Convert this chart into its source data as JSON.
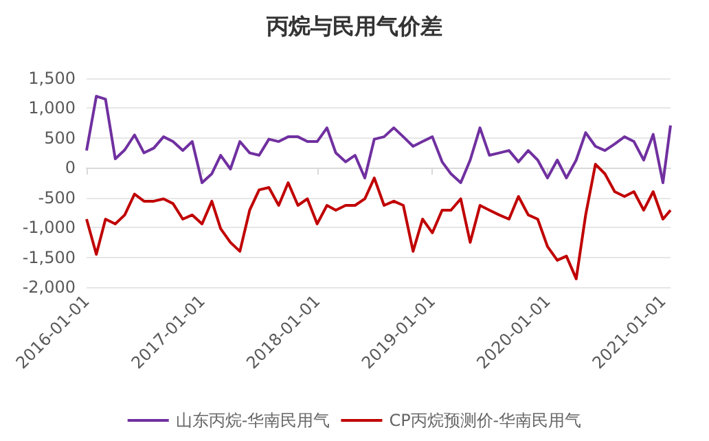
{
  "chart_data": {
    "type": "line",
    "title": "丙烷与民用气价差",
    "x": [
      "2016-01",
      "2016-02",
      "2016-03",
      "2016-04",
      "2016-05",
      "2016-06",
      "2016-07",
      "2016-08",
      "2016-09",
      "2016-10",
      "2016-11",
      "2016-12",
      "2017-01",
      "2017-02",
      "2017-03",
      "2017-04",
      "2017-05",
      "2017-06",
      "2017-07",
      "2017-08",
      "2017-09",
      "2017-10",
      "2017-11",
      "2017-12",
      "2018-01",
      "2018-02",
      "2018-03",
      "2018-04",
      "2018-05",
      "2018-06",
      "2018-07",
      "2018-08",
      "2018-09",
      "2018-10",
      "2018-11",
      "2018-12",
      "2019-01",
      "2019-02",
      "2019-03",
      "2019-04",
      "2019-05",
      "2019-06",
      "2019-07",
      "2019-08",
      "2019-09",
      "2019-10",
      "2019-11",
      "2019-12",
      "2020-01",
      "2020-02",
      "2020-03",
      "2020-04",
      "2020-05",
      "2020-06",
      "2020-07",
      "2020-08",
      "2020-09",
      "2020-10",
      "2020-11",
      "2020-12",
      "2021-01",
      "2021-01-25"
    ],
    "series": [
      {
        "name": "山东丙烷-华南民用气",
        "color": "#7030a0",
        "values": [
          290,
          1200,
          1150,
          150,
          300,
          550,
          250,
          330,
          520,
          440,
          290,
          440,
          -250,
          -100,
          210,
          -20,
          440,
          250,
          210,
          480,
          440,
          520,
          520,
          440,
          440,
          670,
          250,
          100,
          210,
          -170,
          480,
          520,
          670,
          520,
          360,
          440,
          520,
          100,
          -100,
          -250,
          130,
          670,
          210,
          250,
          290,
          100,
          290,
          130,
          -170,
          130,
          -170,
          130,
          590,
          360,
          290,
          400,
          520,
          440,
          130,
          560,
          -250,
          710
        ]
      },
      {
        "name": "CP丙烷预测价-华南民用气",
        "color": "#c00000",
        "values": [
          -860,
          -1450,
          -860,
          -940,
          -790,
          -440,
          -560,
          -560,
          -520,
          -600,
          -860,
          -790,
          -940,
          -560,
          -1020,
          -1250,
          -1400,
          -710,
          -370,
          -330,
          -630,
          -250,
          -630,
          -520,
          -940,
          -630,
          -710,
          -630,
          -630,
          -520,
          -170,
          -630,
          -560,
          -630,
          -1400,
          -860,
          -1090,
          -710,
          -710,
          -520,
          -1250,
          -630,
          -710,
          -790,
          -860,
          -480,
          -790,
          -860,
          -1320,
          -1550,
          -1480,
          -1860,
          -790,
          60,
          -100,
          -400,
          -480,
          -400,
          -710,
          -400,
          -860,
          -710
        ]
      }
    ],
    "xlim": [
      "2016-01-01",
      "2021-01-25"
    ],
    "xticks": [
      "2016-01-01",
      "2017-01-01",
      "2018-01-01",
      "2019-01-01",
      "2020-01-01",
      "2021-01-01"
    ],
    "ylim": [
      -2000,
      1500
    ],
    "yticks": [
      {
        "value": -2000,
        "label": "-2,000"
      },
      {
        "value": -1500,
        "label": "-1,500"
      },
      {
        "value": -1000,
        "label": "-1,000"
      },
      {
        "value": -500,
        "label": "-500"
      },
      0,
      500,
      {
        "value": 1000,
        "label": "1,000"
      },
      {
        "value": 1500,
        "label": "1,500"
      }
    ],
    "grid": "y",
    "legend": "bottom",
    "marker": "none",
    "line_style": "solid"
  }
}
